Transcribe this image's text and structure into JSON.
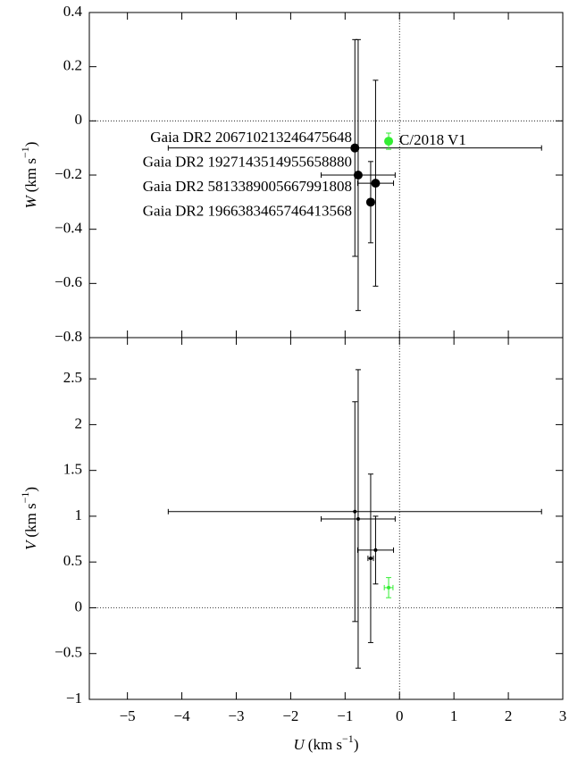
{
  "chart_data": [
    {
      "type": "scatter",
      "ylabel_symbol": "W",
      "ylabel_unit": "(km s",
      "ylabel_exp": "−1",
      "ylabel_close": ")",
      "xlim": [
        -5.7,
        3
      ],
      "xticks": [
        -5,
        -4,
        -3,
        -2,
        -1,
        0,
        1,
        2,
        3
      ],
      "ylim": [
        -0.8,
        0.4
      ],
      "yticks": [
        {
          "value": -0.8,
          "label": "−0.8"
        },
        {
          "value": -0.6,
          "label": "−0.6"
        },
        {
          "value": -0.4,
          "label": "−0.4"
        },
        {
          "value": -0.2,
          "label": "−0.2"
        },
        0,
        0.2,
        0.4
      ],
      "zero_lines": true,
      "series": [
        {
          "color": "#000000",
          "point_labels": [
            "Gaia DR2 206710213246475648",
            "Gaia DR2 1927143514955658880",
            "Gaia DR2 5813389005667991808",
            "Gaia DR2 1966383465746413568"
          ],
          "x": [
            -0.82,
            -0.76,
            -0.44,
            -0.53
          ],
          "y": [
            -0.1,
            -0.2,
            -0.23,
            -0.3
          ],
          "xerr": [
            3.43,
            0.68,
            0.33,
            0.05
          ],
          "yerr": [
            0.4,
            0.5,
            0.38,
            0.15
          ]
        },
        {
          "name": "C/2018 V1",
          "color": "#33ee33",
          "x": [
            -0.2
          ],
          "y": [
            -0.075
          ],
          "xerr": [
            0.05
          ],
          "yerr": [
            0.03
          ]
        }
      ]
    },
    {
      "type": "scatter",
      "ylabel_symbol": "V",
      "ylabel_unit": "(km s",
      "ylabel_exp": "−1",
      "ylabel_close": ")",
      "xlabel_symbol": "U",
      "xlabel_unit": "(km s",
      "xlabel_exp": "−1",
      "xlabel_close": ")",
      "xlim": [
        -5.7,
        3
      ],
      "xticks": [
        {
          "value": -5,
          "label": "−5"
        },
        {
          "value": -4,
          "label": "−4"
        },
        {
          "value": -3,
          "label": "−3"
        },
        {
          "value": -2,
          "label": "−2"
        },
        {
          "value": -1,
          "label": "−1"
        },
        0,
        1,
        2,
        3
      ],
      "ylim": [
        -1,
        2.95
      ],
      "yticks": [
        {
          "value": -1,
          "label": "−1"
        },
        {
          "value": -0.5,
          "label": "−0.5"
        },
        0,
        0.5,
        1,
        1.5,
        2,
        2.5
      ],
      "zero_lines": true,
      "series": [
        {
          "color": "#000000",
          "x": [
            -0.82,
            -0.76,
            -0.44,
            -0.53
          ],
          "y": [
            1.05,
            0.97,
            0.63,
            0.54
          ],
          "xerr": [
            3.43,
            0.68,
            0.33,
            0.05
          ],
          "yerr": [
            1.2,
            1.63,
            0.37,
            0.92
          ]
        },
        {
          "color": "#33ee33",
          "x": [
            -0.2
          ],
          "y": [
            0.22
          ],
          "xerr": [
            0.08
          ],
          "yerr": [
            0.11
          ]
        }
      ]
    }
  ]
}
